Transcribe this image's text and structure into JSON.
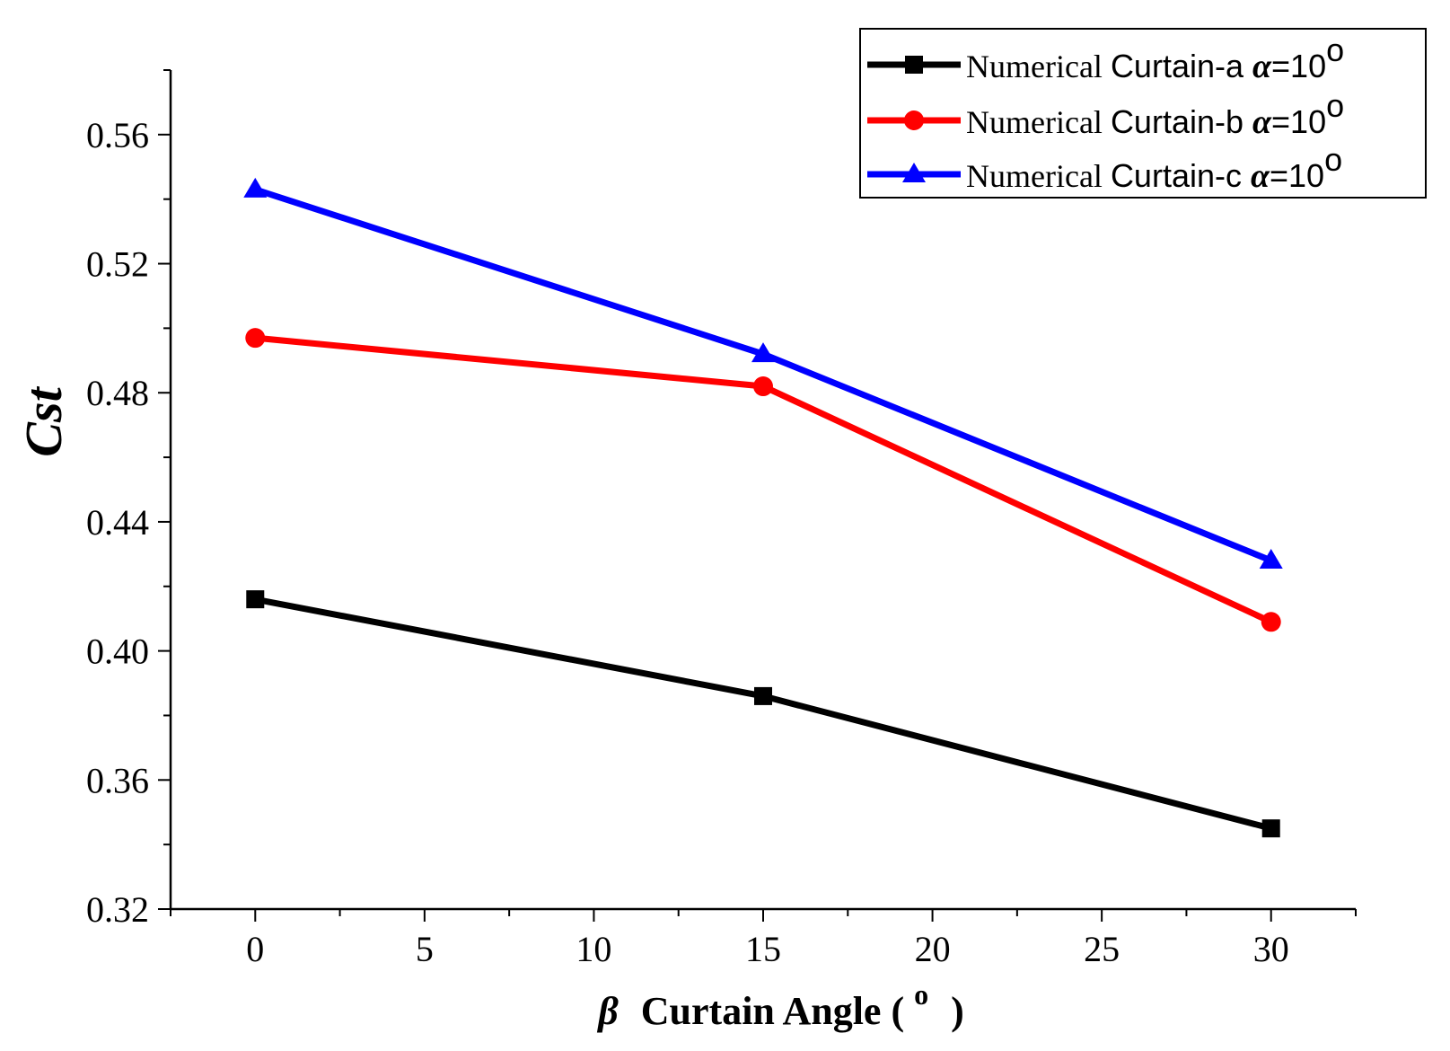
{
  "chart_data": {
    "type": "line",
    "title": "",
    "xlabel": {
      "symbol": "β",
      "text": "Curtain Angle (",
      "superscript": "o",
      "close": ")"
    },
    "ylabel": {
      "main": "C",
      "sub": "st"
    },
    "xlim": [
      -2.5,
      32.5
    ],
    "ylim": [
      0.32,
      0.58
    ],
    "xticks": [
      0,
      5,
      10,
      15,
      20,
      25,
      30
    ],
    "xtick_labels": [
      "0",
      "5",
      "10",
      "15",
      "20",
      "25",
      "30"
    ],
    "yticks": [
      0.32,
      0.36,
      0.4,
      0.44,
      0.48,
      0.52,
      0.56
    ],
    "ytick_labels": [
      "0.32",
      "0.36",
      "0.40",
      "0.44",
      "0.48",
      "0.52",
      "0.56"
    ],
    "legend_position": "top-right",
    "series": [
      {
        "name": "Numerical Curtain-a",
        "label_main": "Numerical ",
        "label_sans": "Curtain-a ",
        "label_greek": "α",
        "label_value": "=10",
        "label_degree": "o",
        "color": "#000000",
        "marker": "square",
        "x": [
          0,
          15,
          30
        ],
        "values": [
          0.416,
          0.386,
          0.345
        ]
      },
      {
        "name": "Numerical Curtain-b",
        "label_main": "Numerical ",
        "label_sans": "Curtain-b ",
        "label_greek": "α",
        "label_value": "=10",
        "label_degree": "o",
        "color": "#ff0000",
        "marker": "circle",
        "x": [
          0,
          15,
          30
        ],
        "values": [
          0.497,
          0.482,
          0.409
        ]
      },
      {
        "name": "Numerical Curtain-c",
        "label_main": "Numerical ",
        "label_sans": "Curtain-c ",
        "label_greek": "α",
        "label_value": "=10",
        "label_degree": "o",
        "color": "#0000ff",
        "marker": "triangle",
        "x": [
          0,
          15,
          30
        ],
        "values": [
          0.543,
          0.492,
          0.428
        ]
      }
    ]
  }
}
